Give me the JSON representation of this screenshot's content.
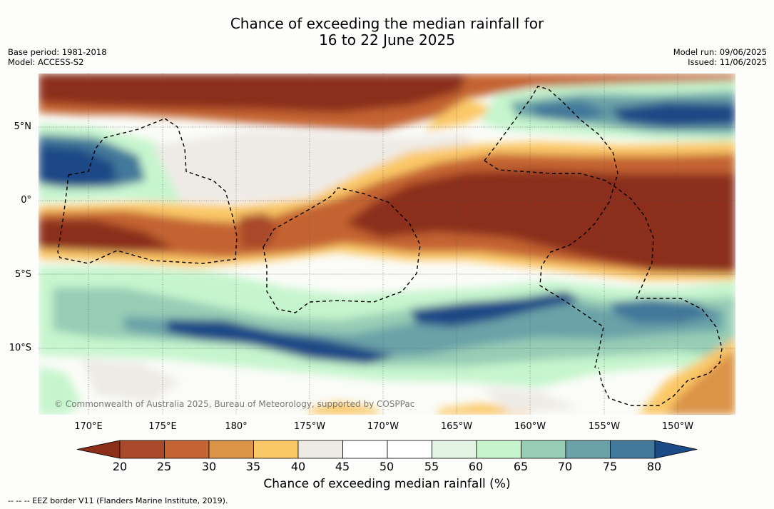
{
  "title_line1": "Chance of exceeding the median rainfall for",
  "title_line2": "16 to 22 June 2025",
  "base_period": "Base period: 1981-2018",
  "model": "Model: ACCESS-S2",
  "model_run": "Model run: 09/06/2025",
  "issued": "Issued: 11/06/2025",
  "copyright": "© Commonwealth of Australia 2025, Bureau of Meteorology, supported by COSPPac",
  "lat_labels": [
    "5°N",
    "0°",
    "5°S",
    "10°S"
  ],
  "lon_labels": [
    "170°E",
    "175°E",
    "180°",
    "175°W",
    "170°W",
    "165°W",
    "160°W",
    "155°W",
    "150°W"
  ],
  "colorbar": {
    "ticks": [
      "20",
      "25",
      "30",
      "35",
      "40",
      "45",
      "50",
      "55",
      "60",
      "65",
      "70",
      "75",
      "80"
    ],
    "colors": [
      "#8b2f1a",
      "#a84a2a",
      "#c46432",
      "#db9347",
      "#fbc867",
      "#eeebe6",
      "#ffffff",
      "#ffffff",
      "#e4f4e4",
      "#c6f5cd",
      "#97cdb5",
      "#6aa2a8",
      "#42789a",
      "#1c4a86"
    ],
    "title": "Chance of exceeding median rainfall (%)"
  },
  "legend": "--  --  -- EEZ border V11 (Flanders Marine Institute, 2019)."
}
